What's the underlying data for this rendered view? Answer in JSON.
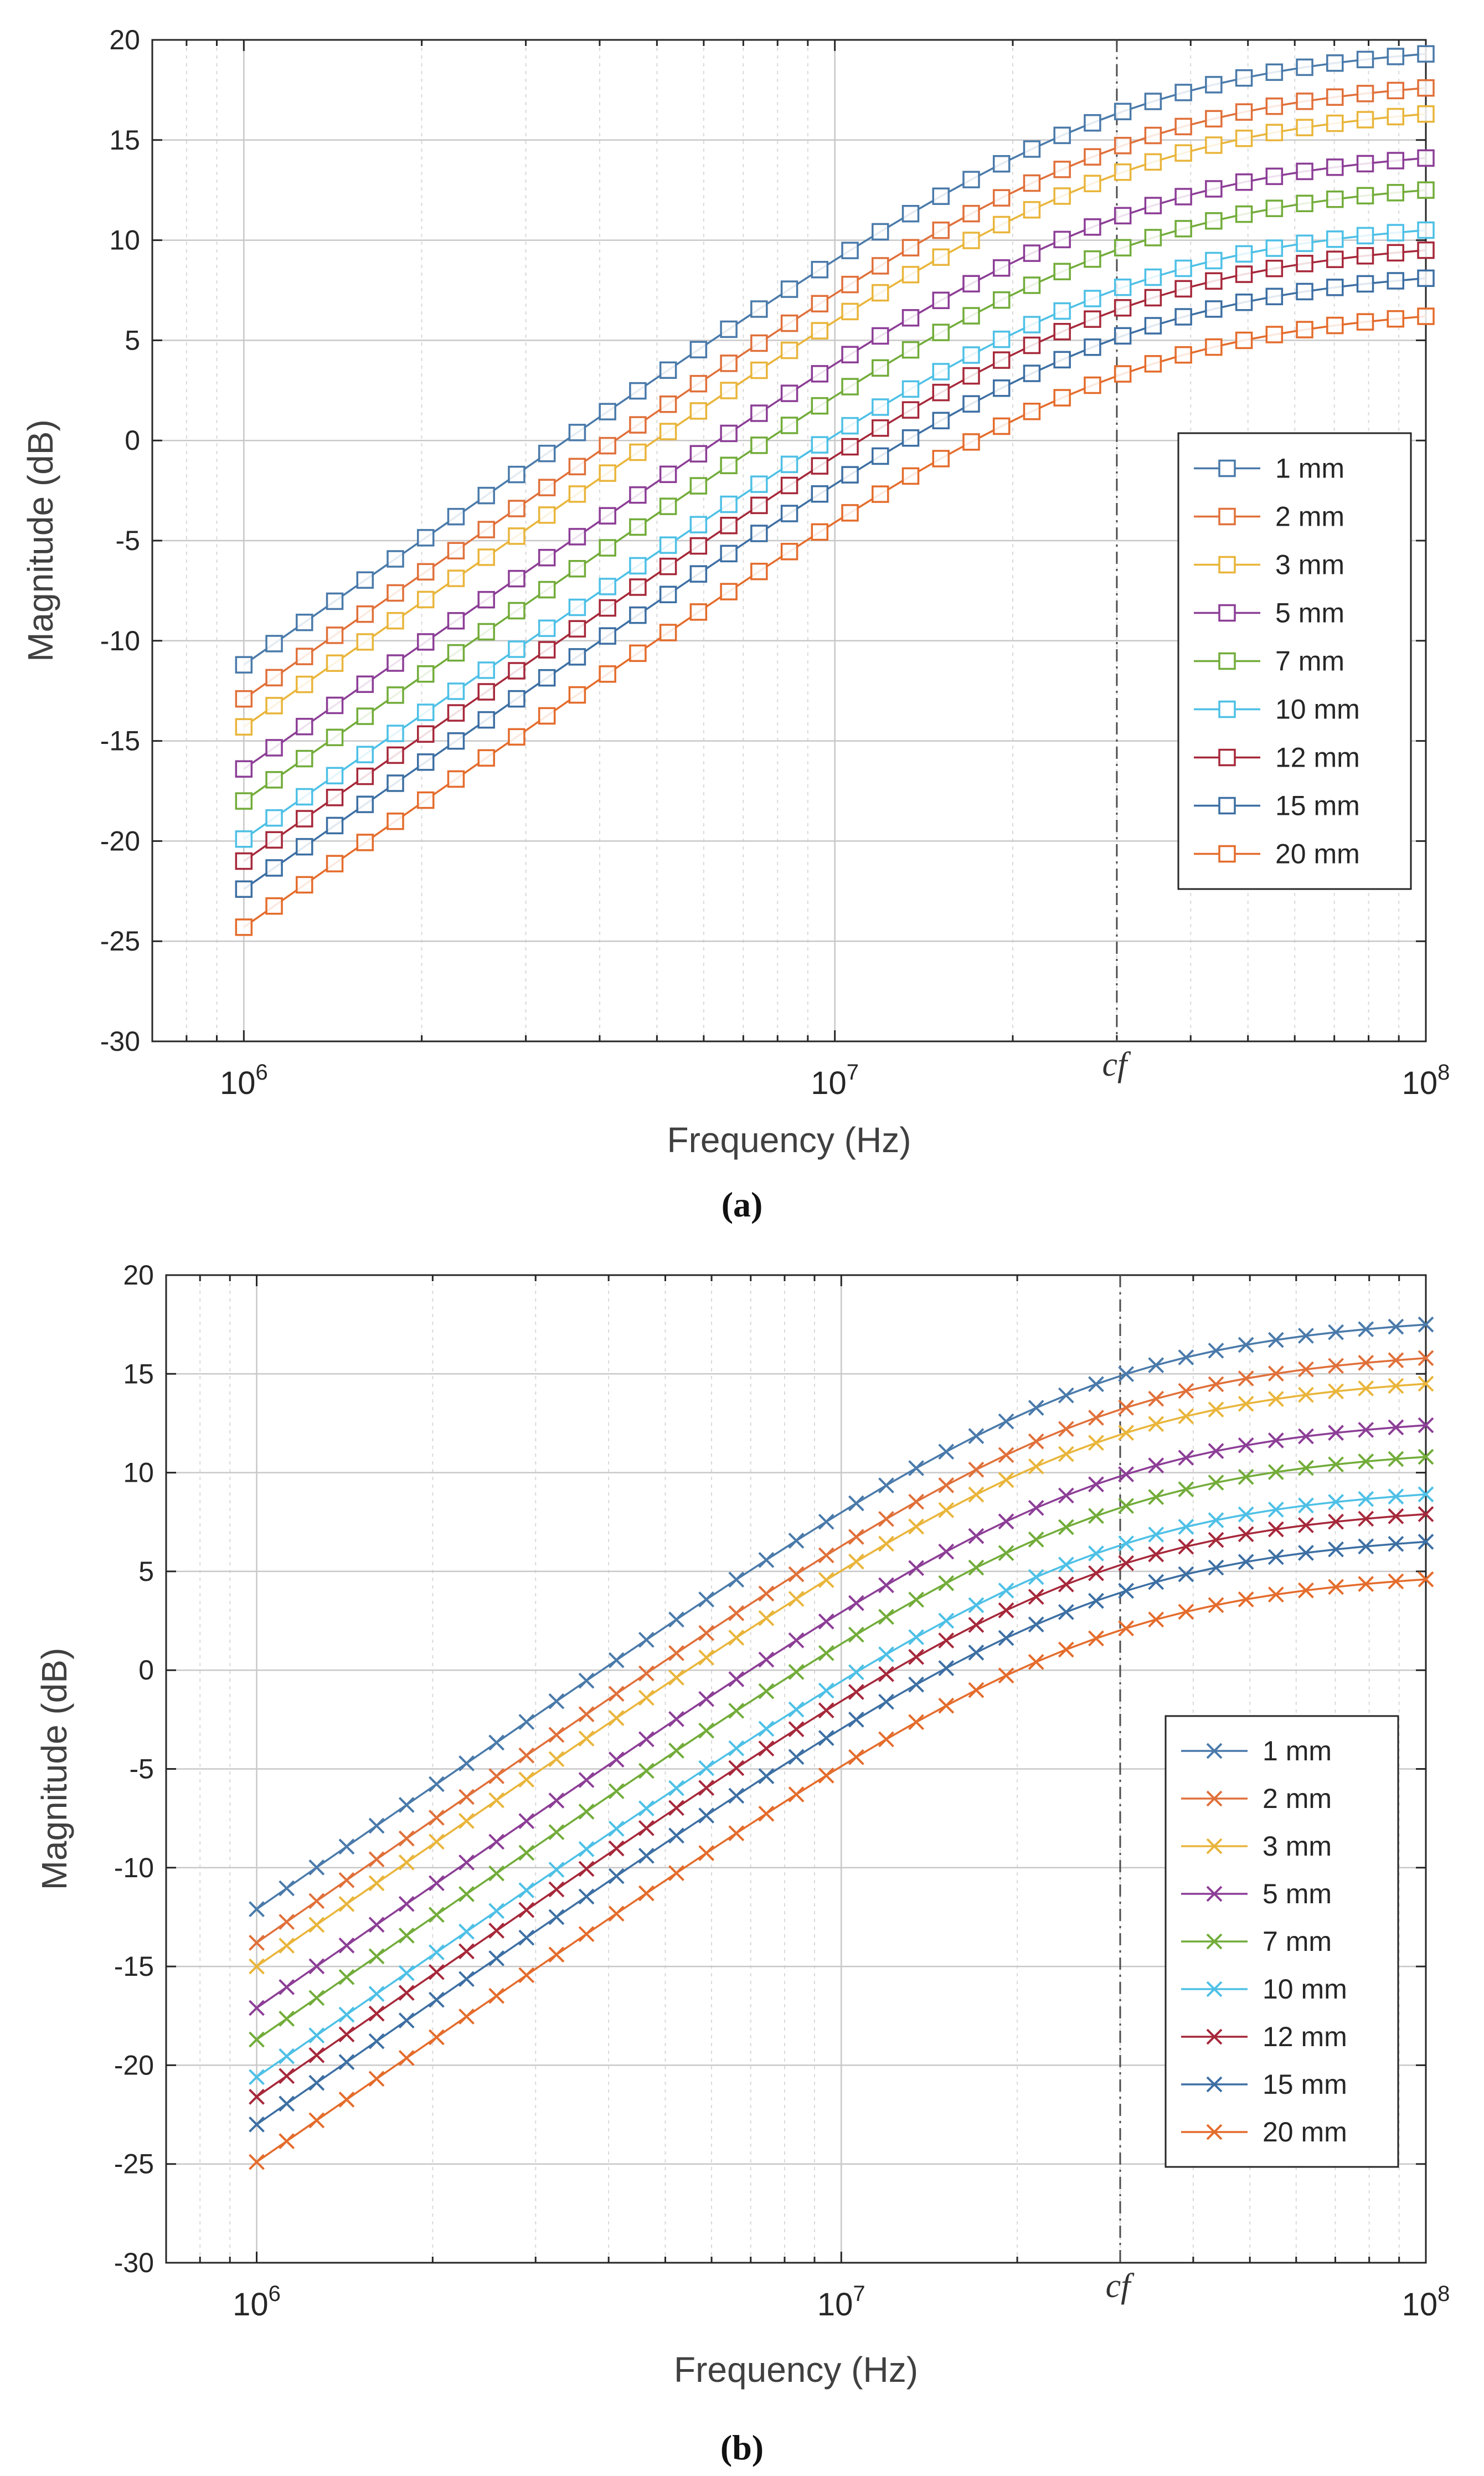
{
  "chart_data": [
    {
      "type": "line",
      "panel_label": "(a)",
      "marker": "square",
      "xscale": "log",
      "xlim": [
        700000,
        100000000
      ],
      "ylim": [
        -30,
        20
      ],
      "yticks": [
        -30,
        -25,
        -20,
        -15,
        -10,
        -5,
        0,
        5,
        10,
        15,
        20
      ],
      "xticks": [
        {
          "value": 1000000,
          "base": "10",
          "exp": "6"
        },
        {
          "value": 10000000,
          "base": "10",
          "exp": "7"
        },
        {
          "value": 100000000,
          "base": "10",
          "exp": "8"
        }
      ],
      "xlabel": "Frequency (Hz)",
      "ylabel": "Magnitude (dB)",
      "grid": true,
      "cf_label": "cf",
      "cf_value": 30000000,
      "legend_position": "right-middle",
      "curve_model": {
        "x": "frequency in Hz, 40 log-spaced points from 1e6 to 1e8",
        "y": "top - 10*log10(1+(fc/f)^2)"
      },
      "series": [
        {
          "name": "1 mm",
          "color": "#4a7aaa",
          "start_db": -11.2,
          "end_db": 19.3,
          "corner_hz": 30000000
        },
        {
          "name": "2 mm",
          "color": "#e0703a",
          "start_db": -12.9,
          "end_db": 17.6,
          "corner_hz": 30000000
        },
        {
          "name": "3 mm",
          "color": "#e9b53b",
          "start_db": -14.3,
          "end_db": 16.3,
          "corner_hz": 30000000
        },
        {
          "name": "5 mm",
          "color": "#8c3e96",
          "start_db": -16.4,
          "end_db": 14.1,
          "corner_hz": 30000000
        },
        {
          "name": "7 mm",
          "color": "#72ac3a",
          "start_db": -18.0,
          "end_db": 12.5,
          "corner_hz": 30000000
        },
        {
          "name": "10 mm",
          "color": "#4ec0e6",
          "start_db": -19.9,
          "end_db": 10.5,
          "corner_hz": 30000000
        },
        {
          "name": "12 mm",
          "color": "#a6283a",
          "start_db": -21.0,
          "end_db": 9.5,
          "corner_hz": 30000000
        },
        {
          "name": "15 mm",
          "color": "#3d6fa3",
          "start_db": -22.4,
          "end_db": 8.1,
          "corner_hz": 30000000
        },
        {
          "name": "20 mm",
          "color": "#e46c2c",
          "start_db": -24.3,
          "end_db": 6.2,
          "corner_hz": 30000000
        }
      ]
    },
    {
      "type": "line",
      "panel_label": "(b)",
      "marker": "x",
      "xscale": "log",
      "xlim": [
        700000,
        100000000
      ],
      "ylim": [
        -30,
        20
      ],
      "yticks": [
        -30,
        -25,
        -20,
        -15,
        -10,
        -5,
        0,
        5,
        10,
        15,
        20
      ],
      "xticks": [
        {
          "value": 1000000,
          "base": "10",
          "exp": "6"
        },
        {
          "value": 10000000,
          "base": "10",
          "exp": "7"
        },
        {
          "value": 100000000,
          "base": "10",
          "exp": "8"
        }
      ],
      "xlabel": "Frequency (Hz)",
      "ylabel": "Magnitude (dB)",
      "grid": true,
      "cf_label": "cf",
      "cf_value": 30000000,
      "legend_position": "right-bottom",
      "curve_model": {
        "x": "frequency in Hz, 40 log-spaced points from 1e6 to 1e8",
        "y": "top - 10*log10(1+(fc/f)^2)"
      },
      "series": [
        {
          "name": "1 mm",
          "color": "#4a7aaa",
          "start_db": -12.1,
          "end_db": 17.5,
          "corner_hz": 27000000
        },
        {
          "name": "2 mm",
          "color": "#e0703a",
          "start_db": -13.8,
          "end_db": 15.8,
          "corner_hz": 27000000
        },
        {
          "name": "3 mm",
          "color": "#e9b53b",
          "start_db": -15.0,
          "end_db": 14.5,
          "corner_hz": 27000000
        },
        {
          "name": "5 mm",
          "color": "#8c3e96",
          "start_db": -17.1,
          "end_db": 12.4,
          "corner_hz": 27000000
        },
        {
          "name": "7 mm",
          "color": "#72ac3a",
          "start_db": -18.7,
          "end_db": 10.8,
          "corner_hz": 27000000
        },
        {
          "name": "10 mm",
          "color": "#4ec0e6",
          "start_db": -20.6,
          "end_db": 8.9,
          "corner_hz": 27000000
        },
        {
          "name": "12 mm",
          "color": "#a6283a",
          "start_db": -21.6,
          "end_db": 7.9,
          "corner_hz": 27000000
        },
        {
          "name": "15 mm",
          "color": "#3d6fa3",
          "start_db": -23.0,
          "end_db": 6.5,
          "corner_hz": 27000000
        },
        {
          "name": "20 mm",
          "color": "#e46c2c",
          "start_db": -24.9,
          "end_db": 4.6,
          "corner_hz": 27000000
        }
      ]
    }
  ]
}
